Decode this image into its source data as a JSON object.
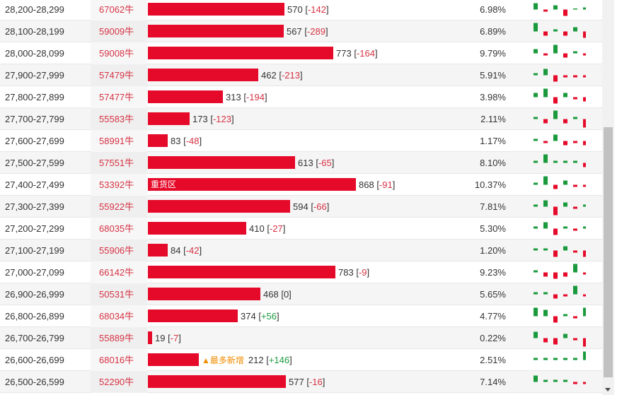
{
  "rows": [
    {
      "range": "28,200-28,299",
      "code": "67062牛",
      "count": "570",
      "delta": "-142",
      "tag": "",
      "pct": "6.98%",
      "spark": [
        3,
        -1,
        2,
        -3,
        0,
        1
      ]
    },
    {
      "range": "28,100-28,199",
      "code": "59009牛",
      "count": "567",
      "delta": "-289",
      "tag": "",
      "pct": "6.89%",
      "spark": [
        4,
        -2,
        1,
        -2,
        2,
        -3
      ]
    },
    {
      "range": "28,000-28,099",
      "code": "59008牛",
      "count": "773",
      "delta": "-164",
      "tag": "",
      "pct": "9.79%",
      "spark": [
        2,
        -1,
        4,
        -2,
        1,
        -1
      ]
    },
    {
      "range": "27,900-27,999",
      "code": "57479牛",
      "count": "462",
      "delta": "-213",
      "tag": "",
      "pct": "5.91%",
      "spark": [
        1,
        3,
        -3,
        -1,
        -1,
        -1
      ]
    },
    {
      "range": "27,800-27,899",
      "code": "57477牛",
      "count": "313",
      "delta": "-194",
      "tag": "",
      "pct": "3.98%",
      "spark": [
        2,
        4,
        -3,
        2,
        -1,
        -2
      ]
    },
    {
      "range": "27,700-27,799",
      "code": "55583牛",
      "count": "173",
      "delta": "-123",
      "tag": "",
      "pct": "2.11%",
      "spark": [
        1,
        -2,
        4,
        -2,
        1,
        -4
      ]
    },
    {
      "range": "27,600-27,699",
      "code": "58991牛",
      "count": "83",
      "delta": "-48",
      "tag": "",
      "pct": "1.17%",
      "spark": [
        1,
        -1,
        3,
        -2,
        -1,
        -2
      ]
    },
    {
      "range": "27,500-27,599",
      "code": "57551牛",
      "count": "613",
      "delta": "-65",
      "tag": "",
      "pct": "8.10%",
      "spark": [
        1,
        4,
        1,
        1,
        1,
        -2
      ]
    },
    {
      "range": "27,400-27,499",
      "code": "53392牛",
      "count": "868",
      "delta": "-91",
      "tag": "重货区",
      "pct": "10.37%",
      "spark": [
        1,
        4,
        -2,
        2,
        -1,
        -1
      ]
    },
    {
      "range": "27,300-27,399",
      "code": "55922牛",
      "count": "594",
      "delta": "-66",
      "tag": "",
      "pct": "7.81%",
      "spark": [
        1,
        3,
        -4,
        2,
        -1,
        1
      ]
    },
    {
      "range": "27,200-27,299",
      "code": "68035牛",
      "count": "410",
      "delta": "-27",
      "tag": "",
      "pct": "5.30%",
      "spark": [
        1,
        3,
        -3,
        1,
        -1,
        1
      ]
    },
    {
      "range": "27,100-27,199",
      "code": "55906牛",
      "count": "84",
      "delta": "-42",
      "tag": "",
      "pct": "1.20%",
      "spark": [
        1,
        1,
        -3,
        2,
        -1,
        -3
      ]
    },
    {
      "range": "27,000-27,099",
      "code": "66142牛",
      "count": "783",
      "delta": "-9",
      "tag": "",
      "pct": "9.23%",
      "spark": [
        1,
        -2,
        -3,
        -2,
        4,
        -1
      ]
    },
    {
      "range": "26,900-26,999",
      "code": "50531牛",
      "count": "468",
      "delta": "0",
      "tag": "",
      "pct": "5.65%",
      "spark": [
        1,
        1,
        -2,
        -1,
        4,
        -1
      ]
    },
    {
      "range": "26,800-26,899",
      "code": "68034牛",
      "count": "374",
      "delta": "+56",
      "tag": "",
      "pct": "4.77%",
      "spark": [
        4,
        3,
        -3,
        1,
        -1,
        4
      ]
    },
    {
      "range": "26,700-26,799",
      "code": "55889牛",
      "count": "19",
      "delta": "-7",
      "tag": "",
      "pct": "0.22%",
      "spark": [
        3,
        -2,
        -3,
        2,
        -1,
        -4
      ]
    },
    {
      "range": "26,600-26,699",
      "code": "68016牛",
      "count": "212",
      "delta": "+146",
      "tag": "▲最多新增",
      "pct": "2.51%",
      "spark": [
        1,
        1,
        1,
        1,
        1,
        4
      ]
    },
    {
      "range": "26,500-26,599",
      "code": "52290牛",
      "count": "577",
      "delta": "-16",
      "tag": "",
      "pct": "7.14%",
      "spark": [
        3,
        1,
        1,
        1,
        -1,
        -1
      ]
    }
  ],
  "colors": {
    "bar": "#e60a2a",
    "code": "#d63344",
    "up": "#1a9a3c",
    "down": "#e60a2a"
  }
}
